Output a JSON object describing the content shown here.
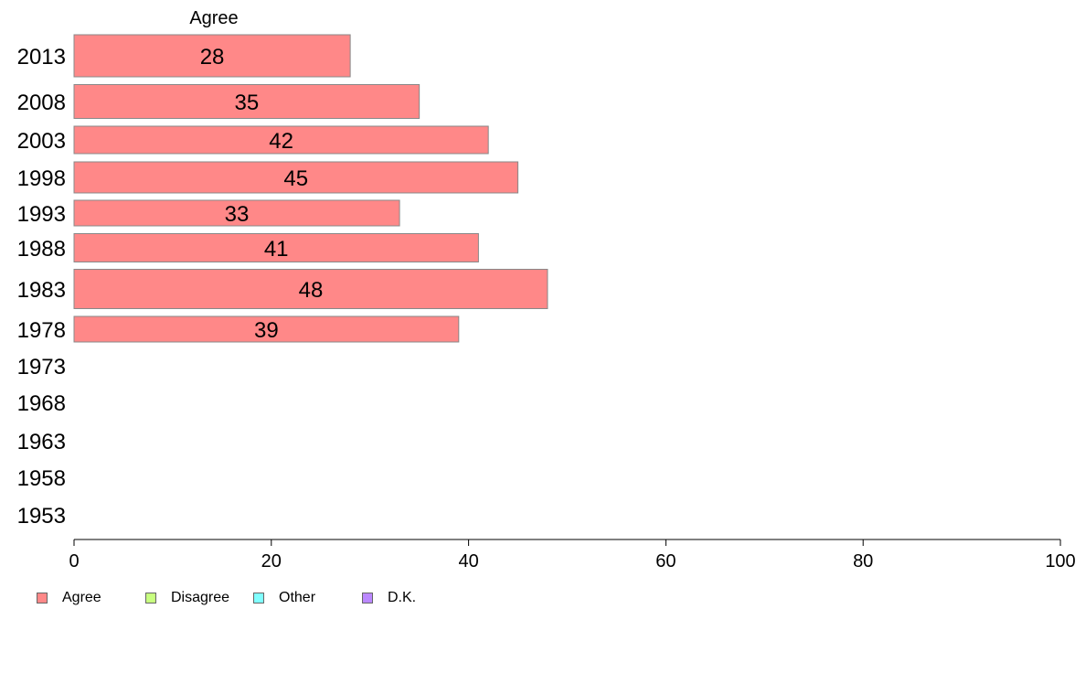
{
  "chart_data": {
    "type": "bar",
    "orientation": "horizontal",
    "series_title": "Agree",
    "categories": [
      "2013",
      "2008",
      "2003",
      "1998",
      "1993",
      "1988",
      "1983",
      "1978",
      "1973",
      "1968",
      "1963",
      "1958",
      "1953"
    ],
    "series": [
      {
        "name": "Agree",
        "color": "#ff8888",
        "values": [
          28,
          35,
          42,
          45,
          33,
          41,
          48,
          39,
          null,
          null,
          null,
          null,
          null
        ]
      }
    ],
    "data_labels": [
      "28",
      "35",
      "42",
      "45",
      "33",
      "41",
      "48",
      "39",
      "",
      "",
      "",
      "",
      ""
    ],
    "xlim": [
      0,
      100
    ],
    "xticks": [
      0,
      20,
      40,
      60,
      80,
      100
    ],
    "grid": false,
    "legend_placement": "bottom-left",
    "legend": [
      {
        "label": "Agree",
        "color": "#ff8888"
      },
      {
        "label": "Disagree",
        "color": "#c8ff80"
      },
      {
        "label": "Other",
        "color": "#80ffff"
      },
      {
        "label": "D.K.",
        "color": "#bb88ff"
      }
    ]
  }
}
